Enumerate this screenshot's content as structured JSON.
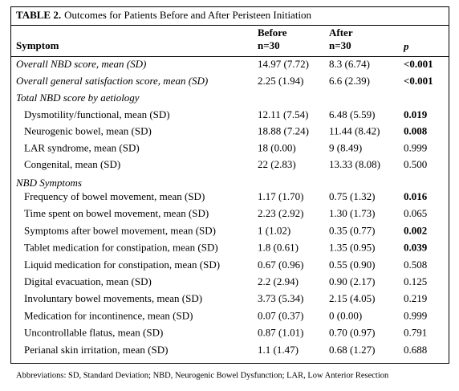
{
  "title": {
    "label": "TABLE 2.",
    "text": "Outcomes for Patients Before and After Peristeen Initiation"
  },
  "table": {
    "header": {
      "symptom": "Symptom",
      "before": [
        "Before",
        "n=30"
      ],
      "after": [
        "After",
        "n=30"
      ],
      "p": "p"
    },
    "overall": [
      [
        "Overall NBD score, mean (SD)",
        "14.97 (7.72)",
        "8.3 (6.74)",
        "<0.001"
      ],
      [
        "Overall general satisfaction score, mean (SD)",
        "2.25 (1.94)",
        "6.6 (2.39)",
        "<0.001"
      ]
    ],
    "groups": [
      {
        "title": "Total NBD score by aetiology",
        "rows": [
          [
            "Dysmotility/functional, mean (SD)",
            "12.11 (7.54)",
            "6.48 (5.59)",
            "0.019"
          ],
          [
            "Neurogenic bowel, mean (SD)",
            "18.88 (7.24)",
            "11.44 (8.42)",
            "0.008"
          ],
          [
            "LAR syndrome, mean (SD)",
            "18 (0.00)",
            "9 (8.49)",
            "0.999"
          ],
          [
            "Congenital, mean (SD)",
            "22 (2.83)",
            "13.33 (8.08)",
            "0.500"
          ]
        ]
      },
      {
        "title": "NBD Symptoms",
        "rows": [
          [
            "Frequency of bowel movement, mean (SD)",
            "1.17 (1.70)",
            "0.75 (1.32)",
            "0.016"
          ],
          [
            "Time spent on bowel movement, mean (SD)",
            "2.23 (2.92)",
            "1.30 (1.73)",
            "0.065"
          ],
          [
            "Symptoms after bowel movement, mean (SD)",
            "1 (1.02)",
            "0.35 (0.77)",
            "0.002"
          ],
          [
            "Tablet medication for constipation, mean (SD)",
            "1.8 (0.61)",
            "1.35 (0.95)",
            "0.039"
          ],
          [
            "Liquid medication for constipation, mean (SD)",
            "0.67 (0.96)",
            "0.55 (0.90)",
            "0.508"
          ],
          [
            "Digital evacuation, mean (SD)",
            "2.2 (2.94)",
            "0.90 (2.17)",
            "0.125"
          ],
          [
            "Involuntary bowel movements, mean (SD)",
            "3.73 (5.34)",
            "2.15 (4.05)",
            "0.219"
          ],
          [
            "Medication for incontinence, mean (SD)",
            "0.07 (0.37)",
            "0 (0.00)",
            "0.999"
          ],
          [
            "Uncontrollable flatus, mean (SD)",
            "0.87 (1.01)",
            "0.70 (0.97)",
            "0.791"
          ],
          [
            "Perianal skin irritation, mean (SD)",
            "1.1 (1.47)",
            "0.68 (1.27)",
            "0.688"
          ]
        ]
      }
    ]
  },
  "footnote": "Abbreviations: SD, Standard Deviation; NBD, Neurogenic Bowel Dysfunction; LAR, Low Anterior Resection"
}
